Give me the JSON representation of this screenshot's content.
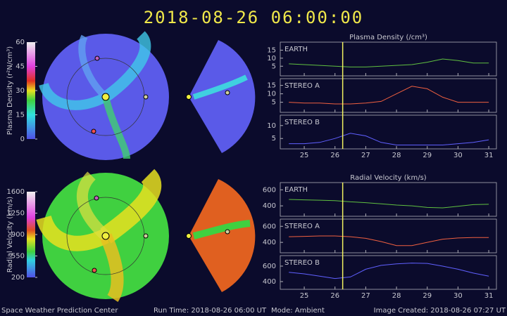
{
  "header": {
    "title": "2018-08-26 06:00:00"
  },
  "colorbars": [
    {
      "label": "Plasma Density (r²N/cm³)",
      "lim": [
        0,
        60
      ],
      "ticks": [
        0,
        15,
        30,
        45,
        60
      ]
    },
    {
      "label": "Radial Velocity (km/s)",
      "lim": [
        200,
        1600
      ],
      "ticks": [
        200,
        550,
        900,
        1250,
        1600
      ]
    }
  ],
  "chart_data": [
    {
      "type": "line",
      "title": "Plasma Density (/cm³)",
      "x": [
        24.5,
        25,
        25.5,
        26,
        26.5,
        27,
        27.5,
        28,
        28.5,
        29,
        29.5,
        30,
        30.5,
        31
      ],
      "xlim": [
        24.22,
        31.25
      ],
      "xticks": [
        25,
        26,
        27,
        28,
        29,
        30,
        31
      ],
      "marker_x": 26.25,
      "marker_color": "#f0f060",
      "series": [
        {
          "name": "EARTH",
          "color": "#60c040",
          "values": [
            6.5,
            6,
            5.5,
            5,
            4.5,
            4.5,
            5,
            5.5,
            6,
            7.5,
            9.5,
            8.5,
            7,
            7
          ],
          "ylim": [
            -1,
            20
          ],
          "yticks": [
            5,
            10,
            15
          ]
        },
        {
          "name": "STEREO A",
          "color": "#f06040",
          "values": [
            5,
            4.5,
            4.5,
            4,
            4,
            4.5,
            5.5,
            10,
            14.5,
            13,
            8,
            5,
            5,
            5
          ],
          "ylim": [
            -1,
            19
          ],
          "yticks": [
            5,
            10,
            15
          ]
        },
        {
          "name": "STEREO B",
          "color": "#6060ff",
          "values": [
            3,
            3,
            3.5,
            5,
            7,
            6,
            3.5,
            2.5,
            2.5,
            2.5,
            2.5,
            3,
            3.5,
            4.5
          ],
          "ylim": [
            1,
            14
          ],
          "yticks": [
            5,
            10
          ]
        }
      ]
    },
    {
      "type": "line",
      "title": "Radial Velocity (km/s)",
      "x": [
        24.5,
        25,
        25.5,
        26,
        26.5,
        27,
        27.5,
        28,
        28.5,
        29,
        29.5,
        30,
        30.5,
        31
      ],
      "xlim": [
        24.22,
        31.25
      ],
      "xticks": [
        25,
        26,
        27,
        28,
        29,
        30,
        31
      ],
      "marker_x": 26.25,
      "marker_color": "#f0f060",
      "series": [
        {
          "name": "EARTH",
          "color": "#60c040",
          "values": [
            480,
            475,
            470,
            465,
            450,
            440,
            425,
            410,
            400,
            380,
            375,
            395,
            415,
            420
          ],
          "ylim": [
            270,
            690
          ],
          "yticks": [
            400,
            600
          ]
        },
        {
          "name": "STEREO A",
          "color": "#f06040",
          "values": [
            470,
            475,
            480,
            480,
            470,
            450,
            410,
            360,
            360,
            400,
            440,
            455,
            460,
            460
          ],
          "ylim": [
            270,
            690
          ],
          "yticks": [
            400,
            600
          ]
        },
        {
          "name": "STEREO B",
          "color": "#6060ff",
          "values": [
            520,
            500,
            470,
            440,
            460,
            560,
            610,
            630,
            640,
            635,
            600,
            560,
            510,
            470
          ],
          "ylim": [
            300,
            736
          ],
          "yticks": [
            400,
            600
          ]
        }
      ]
    }
  ],
  "footer": {
    "center": "Space Weather Prediction Center",
    "run": "Run Time: 2018-08-26 06:00 UT",
    "mode": "Mode: Ambient",
    "created": "Image Created: 2018-08-26 07:27 UT"
  }
}
